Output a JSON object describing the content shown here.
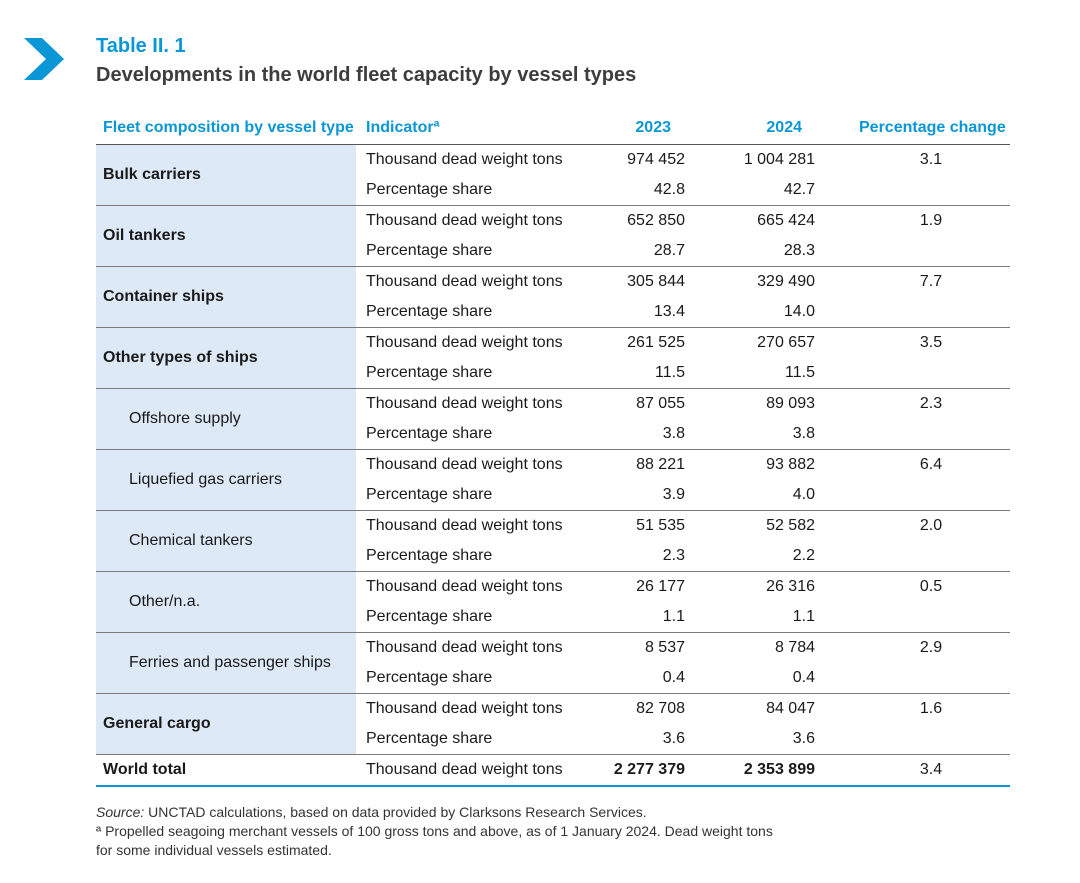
{
  "header": {
    "title": "Table II. 1",
    "subtitle": "Developments in the world fleet capacity by vessel types"
  },
  "table": {
    "columns": {
      "category": "Fleet composition by vessel type",
      "indicator": "Indicatorª",
      "y2023": "2023",
      "y2024": "2024",
      "change": "Percentage change"
    },
    "groups": [
      {
        "name": "Bulk carriers",
        "level": "main",
        "dwt_label": "Thousand dead weight tons",
        "share_label": "Percentage share",
        "dwt_2023": "974 452",
        "dwt_2024": "1 004 281",
        "share_2023": "42.8",
        "share_2024": "42.7",
        "change": "3.1"
      },
      {
        "name": "Oil tankers",
        "level": "main",
        "dwt_label": "Thousand dead weight tons",
        "share_label": "Percentage share",
        "dwt_2023": "652 850",
        "dwt_2024": "665 424",
        "share_2023": "28.7",
        "share_2024": "28.3",
        "change": "1.9"
      },
      {
        "name": "Container ships",
        "level": "main",
        "dwt_label": "Thousand dead weight tons",
        "share_label": "Percentage share",
        "dwt_2023": "305 844",
        "dwt_2024": "329 490",
        "share_2023": "13.4",
        "share_2024": "14.0",
        "change": "7.7"
      },
      {
        "name": "Other types of ships",
        "level": "main",
        "dwt_label": "Thousand dead weight tons",
        "share_label": "Percentage share",
        "dwt_2023": "261 525",
        "dwt_2024": "270 657",
        "share_2023": "11.5",
        "share_2024": "11.5",
        "change": "3.5"
      },
      {
        "name": "Offshore supply",
        "level": "sub",
        "dwt_label": "Thousand dead weight tons",
        "share_label": "Percentage share",
        "dwt_2023": "87 055",
        "dwt_2024": "89 093",
        "share_2023": "3.8",
        "share_2024": "3.8",
        "change": "2.3"
      },
      {
        "name": "Liquefied gas carriers",
        "level": "sub",
        "dwt_label": "Thousand dead weight tons",
        "share_label": "Percentage share",
        "dwt_2023": "88 221",
        "dwt_2024": "93 882",
        "share_2023": "3.9",
        "share_2024": "4.0",
        "change": "6.4"
      },
      {
        "name": "Chemical tankers",
        "level": "sub",
        "dwt_label": "Thousand dead weight tons",
        "share_label": "Percentage share",
        "dwt_2023": "51 535",
        "dwt_2024": "52 582",
        "share_2023": "2.3",
        "share_2024": "2.2",
        "change": "2.0"
      },
      {
        "name": "Other/n.a.",
        "level": "sub",
        "dwt_label": "Thousand dead weight tons",
        "share_label": "Percentage share",
        "dwt_2023": "26 177",
        "dwt_2024": "26 316",
        "share_2023": "1.1",
        "share_2024": "1.1",
        "change": "0.5"
      },
      {
        "name": "Ferries and passenger ships",
        "level": "sub",
        "dwt_label": "Thousand dead weight tons",
        "share_label": "Percentage share",
        "dwt_2023": "8 537",
        "dwt_2024": "8 784",
        "share_2023": "0.4",
        "share_2024": "0.4",
        "change": "2.9"
      },
      {
        "name": "General cargo",
        "level": "main",
        "dwt_label": "Thousand dead weight tons",
        "share_label": "Percentage share",
        "dwt_2023": "82 708",
        "dwt_2024": "84 047",
        "share_2023": "3.6",
        "share_2024": "3.6",
        "change": "1.6"
      }
    ],
    "total": {
      "name": "World total",
      "dwt_label": "Thousand dead weight tons",
      "dwt_2023": "2 277 379",
      "dwt_2024": "2 353 899",
      "change": "3.4"
    }
  },
  "notes": {
    "source_label": "Source:",
    "source_text": " UNCTAD calculations, based on data provided by Clarksons Research Services.",
    "footnote_line1": "ª Propelled seagoing merchant vessels of 100 gross tons and above, as of 1 January 2024. Dead weight tons",
    "footnote_line2": "for some individual vessels estimated."
  },
  "colors": {
    "accent": "#0b96d6",
    "category_bg": "#dde9f6",
    "subtitle": "#3d3d3d"
  },
  "icons": {
    "section_marker": "chevron-right-icon"
  }
}
